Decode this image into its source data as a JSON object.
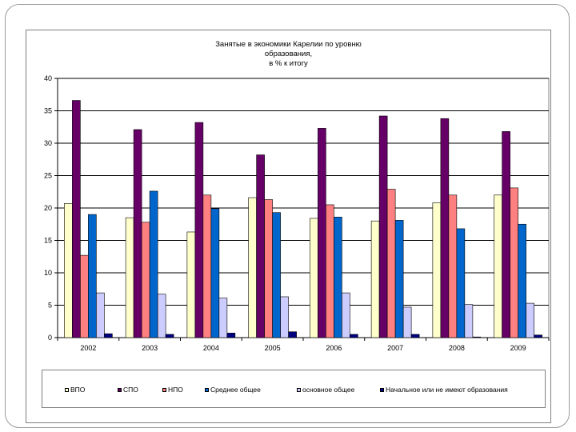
{
  "chart_data": {
    "type": "bar",
    "title_lines": [
      "Занятые в экономики Карелии по уровню",
      "образования,",
      "в % к итогу"
    ],
    "categories": [
      "2002",
      "2003",
      "2004",
      "2005",
      "2006",
      "2007",
      "2008",
      "2009"
    ],
    "ylim": [
      0,
      40
    ],
    "yticks": [
      "0",
      "5",
      "10",
      "15",
      "20",
      "25",
      "30",
      "35",
      "40"
    ],
    "grid": true,
    "legend_position": "bottom",
    "series": [
      {
        "name": "ВПО",
        "color": "#FFFFCC",
        "values": [
          20.7,
          18.5,
          16.3,
          21.6,
          18.4,
          18.0,
          20.8,
          22.0
        ]
      },
      {
        "name": "СПО",
        "color": "#660066",
        "values": [
          36.6,
          32.1,
          33.2,
          28.2,
          32.3,
          34.2,
          33.8,
          31.8
        ]
      },
      {
        "name": "НПО",
        "color": "#FF8080",
        "values": [
          12.7,
          17.8,
          22.0,
          21.3,
          20.5,
          22.9,
          22.0,
          23.1
        ]
      },
      {
        "name": "Среднее общее",
        "color": "#0066CC",
        "values": [
          19.0,
          22.6,
          19.9,
          19.3,
          18.6,
          18.1,
          16.8,
          17.5
        ]
      },
      {
        "name": "основное общее",
        "color": "#CCCCFF",
        "values": [
          6.9,
          6.7,
          6.1,
          6.3,
          6.9,
          4.7,
          5.1,
          5.3
        ]
      },
      {
        "name": "Начальное или не имеют образования",
        "color": "#000080",
        "values": [
          0.6,
          0.5,
          0.7,
          0.9,
          0.5,
          0.5,
          0.1,
          0.4
        ]
      }
    ]
  }
}
